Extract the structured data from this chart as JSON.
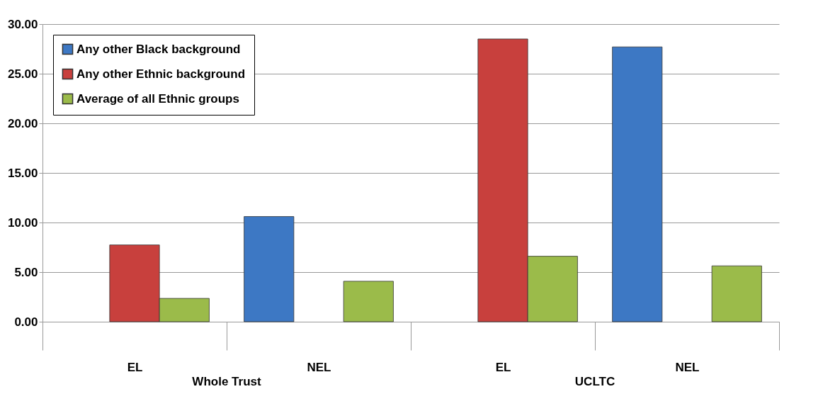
{
  "chart_data": {
    "type": "bar",
    "categories": [
      "EL",
      "NEL",
      "EL",
      "NEL"
    ],
    "series": [
      {
        "name": "Any other Black background",
        "color": "#3d78c4",
        "values": [
          null,
          10.6,
          null,
          27.7
        ]
      },
      {
        "name": "Any other Ethnic background",
        "color": "#c8403d",
        "values": [
          7.74,
          null,
          28.5,
          null
        ]
      },
      {
        "name": "Average of all Ethnic groups",
        "color": "#9bbb4a",
        "values": [
          2.35,
          4.08,
          6.6,
          5.63
        ]
      }
    ],
    "annotations": [
      "Whole Trust",
      "UCLTC"
    ],
    "ylim": [
      0,
      30
    ],
    "yticks": [
      {
        "value": 0,
        "label": "0.00"
      },
      {
        "value": 5,
        "label": "5.00"
      },
      {
        "value": 10,
        "label": "10.00"
      },
      {
        "value": 15,
        "label": "15.00"
      },
      {
        "value": 20,
        "label": "20.00"
      },
      {
        "value": 25,
        "label": "25.00"
      },
      {
        "value": 30,
        "label": "30.00"
      }
    ],
    "grid": "y",
    "legend": "top left"
  }
}
